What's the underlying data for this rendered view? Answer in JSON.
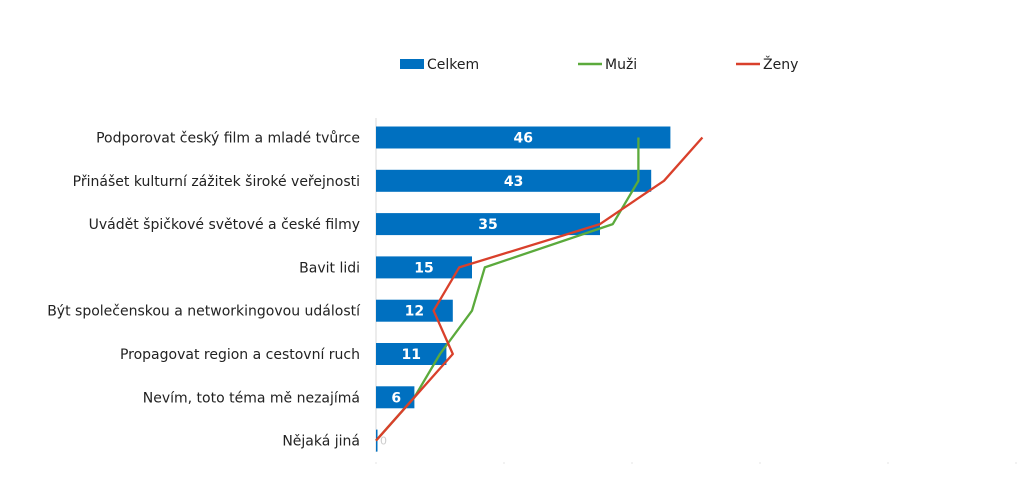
{
  "chart_data": {
    "type": "bar",
    "orientation": "horizontal",
    "categories": [
      "Podporovat český film a mladé tvůrce",
      "Přinášet kulturní zážitek široké veřejnosti",
      "Uvádět špičkové světové a české filmy",
      "Bavit lidi",
      "Být společenskou a networkingovou událostí",
      "Propagovat region a cestovní ruch",
      "Nevím, toto téma mě nezajímá",
      "Nějaká jiná"
    ],
    "series": [
      {
        "name": "Celkem",
        "type": "bar",
        "color": "#0070C0",
        "values": [
          46,
          43,
          35,
          15,
          12,
          11,
          6,
          0
        ]
      },
      {
        "name": "Muži",
        "type": "line",
        "color": "#5BAA3C",
        "values": [
          41,
          41,
          37,
          17,
          15,
          10,
          6,
          0
        ]
      },
      {
        "name": "Ženy",
        "type": "line",
        "color": "#D9402B",
        "values": [
          51,
          45,
          35,
          13,
          9,
          12,
          6,
          0
        ]
      }
    ],
    "data_labels": [
      "46",
      "43",
      "35",
      "15",
      "12",
      "11",
      "6",
      "0"
    ],
    "xlim": [
      0,
      100
    ],
    "grid": false,
    "legend_position": "top"
  }
}
